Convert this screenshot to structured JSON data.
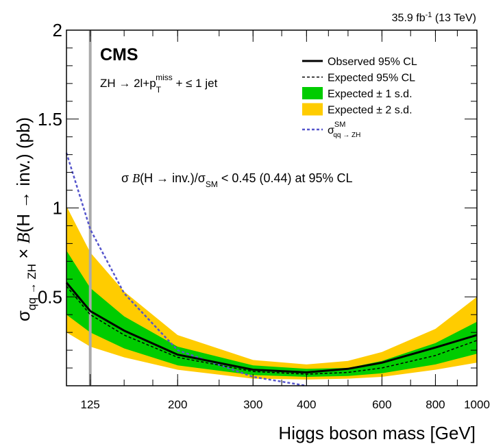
{
  "chart_data": {
    "type": "line",
    "lumi_label": "35.9 fb",
    "lumi_sup": "-1",
    "lumi_energy": " (13 TeV)",
    "experiment": "CMS",
    "process": {
      "main": "ZH → 2l+p",
      "sub": "T",
      "sup": "miss",
      "tail": " + ≤ 1 jet"
    },
    "result": {
      "prefix": "σ ",
      "b": "B",
      "mid": "(H → inv.)/σ",
      "sub": "SM",
      "tail": " < 0.45 (0.44) at 95% CL"
    },
    "xlabel": "Higgs boson mass [GeV]",
    "ylabel": {
      "sigma": "σ",
      "sub": "qq → ZH",
      "times": " × ",
      "b": "B",
      "tail": "(H → inv.) (pb)"
    },
    "x_scale": "log",
    "xlim": [
      110,
      1000
    ],
    "ylim": [
      0.0,
      2.0
    ],
    "x_ticks": [
      {
        "value": 125,
        "label": "125"
      },
      {
        "value": 200,
        "label": "200"
      },
      {
        "value": 300,
        "label": "300"
      },
      {
        "value": 400,
        "label": "400"
      },
      {
        "value": 600,
        "label": "600"
      },
      {
        "value": 800,
        "label": "800"
      },
      {
        "value": 1000,
        "label": "1000"
      }
    ],
    "x_minor_ticks": [
      110,
      125,
      150,
      175,
      200,
      250,
      300,
      350,
      400,
      450,
      500,
      600,
      700,
      800,
      900,
      1000
    ],
    "y_ticks": [
      {
        "value": 0.5,
        "label": "0.5"
      },
      {
        "value": 1.0,
        "label": "1"
      },
      {
        "value": 1.5,
        "label": "1.5"
      },
      {
        "value": 2.0,
        "label": "2"
      }
    ],
    "y_minor_step": 0.1,
    "reference_mass": 125,
    "masses": [
      110,
      125,
      150,
      200,
      300,
      400,
      500,
      600,
      800,
      1000
    ],
    "observed": [
      0.58,
      0.42,
      0.31,
      0.175,
      0.09,
      0.075,
      0.095,
      0.13,
      0.215,
      0.285
    ],
    "expected": [
      0.56,
      0.4,
      0.285,
      0.16,
      0.08,
      0.065,
      0.075,
      0.1,
      0.17,
      0.255
    ],
    "band_1sd": {
      "lower": [
        0.4,
        0.3,
        0.21,
        0.115,
        0.06,
        0.05,
        0.055,
        0.07,
        0.12,
        0.18
      ],
      "upper": [
        0.76,
        0.55,
        0.39,
        0.22,
        0.115,
        0.095,
        0.1,
        0.14,
        0.24,
        0.36
      ]
    },
    "band_2sd": {
      "lower": [
        0.3,
        0.22,
        0.16,
        0.09,
        0.04,
        0.035,
        0.04,
        0.05,
        0.09,
        0.13
      ]
    },
    "band_2sd_upper": [
      1.01,
      0.75,
      0.53,
      0.285,
      0.145,
      0.12,
      0.14,
      0.19,
      0.32,
      0.5
    ],
    "sm_masses": [
      110,
      125,
      150,
      200,
      300,
      400
    ],
    "sm_xsec": [
      1.31,
      0.88,
      0.52,
      0.2,
      0.05,
      0.0
    ],
    "colors": {
      "band_1sd": "#00cc00",
      "band_2sd": "#ffcc00",
      "observed": "#000000",
      "expected": "#000000",
      "sm": "#5555cc",
      "reference_line": "#aaaaaa"
    },
    "legend": {
      "placement": "top-right",
      "entries": [
        {
          "label": "Observed 95% CL",
          "style": "observed"
        },
        {
          "label": "Expected 95% CL",
          "style": "expected"
        },
        {
          "label": "Expected ± 1 s.d.",
          "style": "band_1sd"
        },
        {
          "label": "Expected ± 2 s.d.",
          "style": "band_2sd"
        },
        {
          "label": "σ",
          "sup": "SM",
          "sub": "qq → ZH",
          "style": "sm"
        }
      ]
    }
  }
}
